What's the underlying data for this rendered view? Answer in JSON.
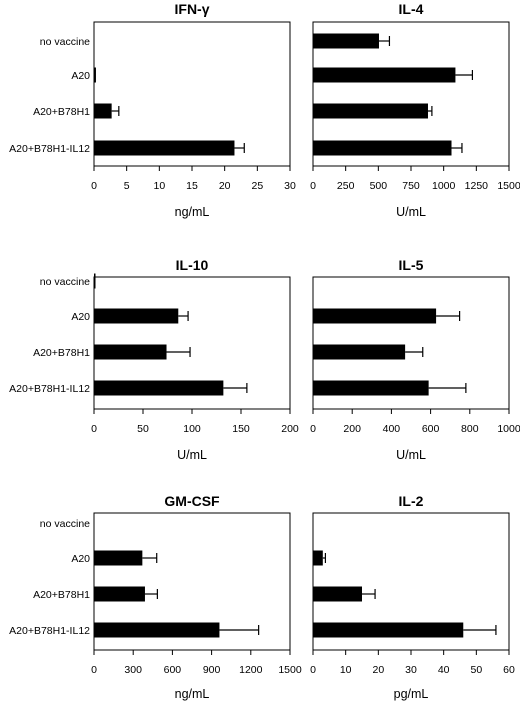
{
  "categories": [
    "no vaccine",
    "A20",
    "A20+B78H1",
    "A20+B78H1-IL12"
  ],
  "chart_data": [
    {
      "type": "bar",
      "title": "IFN-γ",
      "xlabel": "ng/mL",
      "categories": [
        "no vaccine",
        "A20",
        "A20+B78H1",
        "A20+B78H1-IL12"
      ],
      "values": [
        0,
        0.3,
        2.7,
        21.5
      ],
      "errors": [
        0,
        0,
        1.1,
        1.5
      ],
      "xlim": [
        0,
        30
      ],
      "ticks": [
        0,
        5,
        10,
        15,
        20,
        25,
        30
      ],
      "show_category_labels": true
    },
    {
      "type": "bar",
      "title": "IL-4",
      "xlabel": "U/mL",
      "categories": [
        "no vaccine",
        "A20",
        "A20+B78H1",
        "A20+B78H1-IL12"
      ],
      "values": [
        505,
        1090,
        880,
        1060
      ],
      "errors": [
        80,
        130,
        30,
        80
      ],
      "xlim": [
        0,
        1500
      ],
      "ticks": [
        0,
        250,
        500,
        750,
        1000,
        1250,
        1500
      ],
      "show_category_labels": false
    },
    {
      "type": "bar",
      "title": "IL-10",
      "xlabel": "U/mL",
      "categories": [
        "no vaccine",
        "A20",
        "A20+B78H1",
        "A20+B78H1-IL12"
      ],
      "values": [
        1,
        86,
        74,
        132
      ],
      "errors": [
        0,
        10,
        24,
        24
      ],
      "xlim": [
        0,
        200
      ],
      "ticks": [
        0,
        50,
        100,
        150,
        200
      ],
      "show_category_labels": true
    },
    {
      "type": "bar",
      "title": "IL-5",
      "xlabel": "U/mL",
      "categories": [
        "no vaccine",
        "A20",
        "A20+B78H1",
        "A20+B78H1-IL12"
      ],
      "values": [
        0,
        628,
        470,
        590
      ],
      "errors": [
        0,
        120,
        90,
        190
      ],
      "xlim": [
        0,
        1000
      ],
      "ticks": [
        0,
        200,
        400,
        600,
        800,
        1000
      ],
      "show_category_labels": false
    },
    {
      "type": "bar",
      "title": "GM-CSF",
      "xlabel": "ng/mL",
      "categories": [
        "no vaccine",
        "A20",
        "A20+B78H1",
        "A20+B78H1-IL12"
      ],
      "values": [
        0,
        370,
        390,
        960
      ],
      "errors": [
        0,
        110,
        95,
        300
      ],
      "xlim": [
        0,
        1500
      ],
      "ticks": [
        0,
        300,
        600,
        900,
        1200,
        1500
      ],
      "show_category_labels": true
    },
    {
      "type": "bar",
      "title": "IL-2",
      "xlabel": "pg/mL",
      "categories": [
        "no vaccine",
        "A20",
        "A20+B78H1",
        "A20+B78H1-IL12"
      ],
      "values": [
        0,
        3,
        15,
        46
      ],
      "errors": [
        0,
        0.8,
        4,
        10
      ],
      "xlim": [
        0,
        60
      ],
      "ticks": [
        0,
        10,
        20,
        30,
        40,
        50,
        60
      ],
      "show_category_labels": false
    }
  ]
}
